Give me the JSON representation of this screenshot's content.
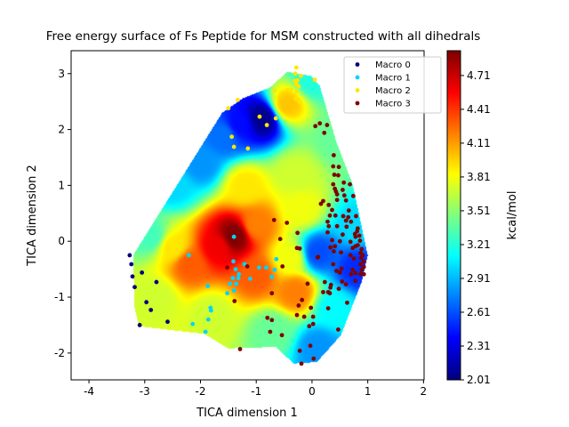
{
  "chart_data": {
    "type": "scatter",
    "title": "Free energy surface of Fs Peptide for MSM constructed with all dihedrals",
    "xlabel": "TICA dimension 1",
    "ylabel": "TICA dimension 2",
    "xlim": [
      -4.32,
      2.01
    ],
    "ylim": [
      -2.48,
      3.41
    ],
    "xticks": [
      -4,
      -3,
      -2,
      -1,
      0,
      1,
      2
    ],
    "yticks": [
      -2,
      -1,
      0,
      1,
      2,
      3
    ],
    "grid": false,
    "legend_placement": "top-right",
    "colorbar": {
      "label": "kcal/mol",
      "colormap": "jet",
      "range": [
        2.01,
        4.93
      ],
      "ticks": [
        "2.01",
        "2.31",
        "2.61",
        "2.91",
        "3.21",
        "3.51",
        "3.81",
        "4.11",
        "4.41",
        "4.71"
      ]
    },
    "surface": {
      "hull": [
        [
          -0.44,
          3.03
        ],
        [
          -0.02,
          2.96
        ],
        [
          0.14,
          2.78
        ],
        [
          0.44,
          1.77
        ],
        [
          0.73,
          1.02
        ],
        [
          1.0,
          -0.25
        ],
        [
          0.89,
          -0.73
        ],
        [
          0.52,
          -1.68
        ],
        [
          0.09,
          -2.16
        ],
        [
          -0.33,
          -2.19
        ],
        [
          -0.65,
          -1.89
        ],
        [
          -1.5,
          -1.92
        ],
        [
          -1.93,
          -1.66
        ],
        [
          -3.1,
          -1.52
        ],
        [
          -3.18,
          -1.2
        ],
        [
          -3.21,
          -0.25
        ],
        [
          -1.61,
          2.3
        ],
        [
          -1.24,
          2.56
        ],
        [
          -0.76,
          2.75
        ]
      ],
      "energy_samples": [
        [
          -1.4,
          0.1,
          4.93
        ],
        [
          -1.7,
          -0.1,
          4.6
        ],
        [
          -2.2,
          -0.4,
          4.3
        ],
        [
          -1.0,
          -0.6,
          4.3
        ],
        [
          -0.3,
          -0.9,
          4.2
        ],
        [
          -0.9,
          2.2,
          2.05
        ],
        [
          -1.3,
          2.1,
          2.4
        ],
        [
          -1.6,
          1.9,
          2.7
        ],
        [
          -2.5,
          1.0,
          3.0
        ],
        [
          -2.0,
          1.4,
          2.8
        ],
        [
          -2.9,
          0.1,
          3.3
        ],
        [
          -0.3,
          1.2,
          3.7
        ],
        [
          -0.45,
          2.45,
          4.0
        ],
        [
          0.8,
          0.3,
          3.0
        ],
        [
          0.1,
          -0.2,
          2.6
        ],
        [
          0.8,
          -0.5,
          2.5
        ],
        [
          0.5,
          1.8,
          3.4
        ],
        [
          -0.7,
          -1.6,
          3.4
        ],
        [
          0.1,
          -1.9,
          2.8
        ],
        [
          -2.8,
          -1.0,
          3.7
        ],
        [
          -1.8,
          -1.3,
          3.7
        ],
        [
          0.0,
          2.9,
          3.2
        ],
        [
          -0.2,
          0.6,
          3.8
        ],
        [
          -1.2,
          1.0,
          3.9
        ],
        [
          -2.5,
          -0.1,
          3.9
        ],
        [
          -1.0,
          0.3,
          4.2
        ],
        [
          0.4,
          -1.2,
          3.1
        ],
        [
          -0.4,
          -0.3,
          3.8
        ]
      ]
    },
    "series": [
      {
        "name": "Macro 0",
        "color": "#000080",
        "points": [
          [
            -3.27,
            -0.25
          ],
          [
            -3.24,
            -0.41
          ],
          [
            -3.22,
            -0.63
          ],
          [
            -3.18,
            -0.82
          ],
          [
            -3.05,
            -0.56
          ],
          [
            -2.79,
            -0.73
          ],
          [
            -2.97,
            -1.09
          ],
          [
            -2.89,
            -1.23
          ],
          [
            -3.09,
            -1.5
          ],
          [
            -2.59,
            -1.44
          ]
        ]
      },
      {
        "name": "Macro 1",
        "color": "#00d4ff",
        "points": [
          [
            -1.4,
            0.08
          ],
          [
            -2.21,
            -0.25
          ],
          [
            -1.41,
            -0.36
          ],
          [
            -1.21,
            -0.41
          ],
          [
            -1.37,
            -0.5
          ],
          [
            -1.31,
            -0.59
          ],
          [
            -1.42,
            -0.66
          ],
          [
            -1.32,
            -0.66
          ],
          [
            -0.95,
            -0.47
          ],
          [
            -0.82,
            -0.47
          ],
          [
            -0.64,
            -0.32
          ],
          [
            -0.67,
            -0.51
          ],
          [
            -0.72,
            -0.64
          ],
          [
            -1.11,
            -0.67
          ],
          [
            -1.47,
            -0.76
          ],
          [
            -1.36,
            -0.76
          ],
          [
            -1.87,
            -0.8
          ],
          [
            -1.4,
            -0.88
          ],
          [
            -1.52,
            -0.93
          ],
          [
            -1.82,
            -1.19
          ],
          [
            -1.81,
            -1.24
          ],
          [
            -1.86,
            -1.4
          ],
          [
            -2.14,
            -1.48
          ],
          [
            -1.91,
            -1.62
          ]
        ]
      },
      {
        "name": "Macro 2",
        "color": "#ffe600",
        "points": [
          [
            -0.28,
            3.11
          ],
          [
            -0.3,
            3.0
          ],
          [
            -0.2,
            2.96
          ],
          [
            0.05,
            2.89
          ],
          [
            -0.31,
            2.87
          ],
          [
            -0.26,
            2.88
          ],
          [
            -0.28,
            2.81
          ],
          [
            -0.44,
            2.71
          ],
          [
            -0.38,
            2.71
          ],
          [
            -0.24,
            2.77
          ],
          [
            -0.28,
            2.68
          ],
          [
            -0.67,
            2.7
          ],
          [
            -0.29,
            2.55
          ],
          [
            -0.23,
            2.5
          ],
          [
            -1.33,
            2.53
          ],
          [
            -1.5,
            2.38
          ],
          [
            -0.94,
            2.23
          ],
          [
            -0.65,
            2.2
          ],
          [
            -0.81,
            2.08
          ],
          [
            -1.44,
            1.87
          ],
          [
            -1.4,
            1.69
          ],
          [
            -1.15,
            1.66
          ]
        ]
      },
      {
        "name": "Macro 3",
        "color": "#800000",
        "points": [
          [
            0.06,
            2.06
          ],
          [
            0.14,
            2.11
          ],
          [
            0.27,
            2.08
          ],
          [
            0.22,
            1.94
          ],
          [
            0.39,
            1.54
          ],
          [
            0.38,
            1.34
          ],
          [
            0.48,
            1.33
          ],
          [
            0.4,
            1.19
          ],
          [
            0.47,
            1.18
          ],
          [
            0.38,
            1.02
          ],
          [
            0.57,
            1.05
          ],
          [
            0.68,
            1.02
          ],
          [
            0.41,
            0.94
          ],
          [
            0.55,
            0.92
          ],
          [
            0.43,
            0.89
          ],
          [
            0.45,
            0.84
          ],
          [
            0.58,
            0.82
          ],
          [
            0.74,
            0.81
          ],
          [
            0.45,
            0.74
          ],
          [
            0.61,
            0.73
          ],
          [
            0.2,
            0.72
          ],
          [
            0.16,
            0.67
          ],
          [
            0.3,
            0.65
          ],
          [
            0.36,
            0.56
          ],
          [
            0.66,
            0.55
          ],
          [
            0.32,
            0.46
          ],
          [
            0.42,
            0.46
          ],
          [
            0.56,
            0.45
          ],
          [
            0.61,
            0.37
          ],
          [
            0.65,
            0.43
          ],
          [
            0.79,
            0.45
          ],
          [
            0.28,
            0.35
          ],
          [
            0.7,
            0.35
          ],
          [
            0.3,
            0.27
          ],
          [
            0.45,
            0.27
          ],
          [
            0.82,
            0.23
          ],
          [
            0.62,
            0.26
          ],
          [
            0.81,
            0.18
          ],
          [
            0.77,
            0.13
          ],
          [
            0.28,
            0.16
          ],
          [
            0.55,
            0.12
          ],
          [
            0.78,
            0.08
          ],
          [
            0.85,
            0.1
          ],
          [
            0.86,
            0.01
          ],
          [
            -0.26,
            0.15
          ],
          [
            -0.68,
            0.38
          ],
          [
            -0.45,
            0.33
          ],
          [
            -0.57,
            0.04
          ],
          [
            -0.27,
            -0.12
          ],
          [
            -0.22,
            -0.13
          ],
          [
            0.36,
            0.02
          ],
          [
            0.5,
            0.0
          ],
          [
            0.69,
            -0.01
          ],
          [
            0.78,
            -0.09
          ],
          [
            0.73,
            -0.12
          ],
          [
            0.33,
            -0.11
          ],
          [
            0.41,
            -0.09
          ],
          [
            0.82,
            -0.07
          ],
          [
            0.89,
            -0.14
          ],
          [
            0.87,
            -0.21
          ],
          [
            0.91,
            -0.25
          ],
          [
            0.88,
            -0.3
          ],
          [
            0.93,
            -0.36
          ],
          [
            0.87,
            -0.41
          ],
          [
            0.93,
            -0.46
          ],
          [
            0.89,
            -0.51
          ],
          [
            0.93,
            -0.59
          ],
          [
            0.1,
            -0.29
          ],
          [
            0.11,
            -0.28
          ],
          [
            0.39,
            -0.18
          ],
          [
            0.52,
            -0.2
          ],
          [
            0.69,
            -0.25
          ],
          [
            0.75,
            -0.31
          ],
          [
            0.38,
            -0.41
          ],
          [
            0.53,
            -0.49
          ],
          [
            0.5,
            -0.56
          ],
          [
            0.44,
            -0.53
          ],
          [
            0.73,
            -0.51
          ],
          [
            0.7,
            -0.59
          ],
          [
            0.78,
            -0.57
          ],
          [
            0.87,
            -0.59
          ],
          [
            0.23,
            -0.73
          ],
          [
            0.54,
            -0.72
          ],
          [
            0.61,
            -0.77
          ],
          [
            0.78,
            -0.71
          ],
          [
            0.34,
            -0.78
          ],
          [
            0.48,
            -0.85
          ],
          [
            0.33,
            -0.83
          ],
          [
            0.2,
            -0.91
          ],
          [
            0.29,
            -0.91
          ],
          [
            0.32,
            -0.93
          ],
          [
            0.63,
            -1.1
          ],
          [
            0.29,
            -1.2
          ],
          [
            -0.02,
            -1.19
          ],
          [
            -0.18,
            -1.05
          ],
          [
            -0.24,
            -1.15
          ],
          [
            -0.27,
            -1.32
          ],
          [
            -0.14,
            -1.35
          ],
          [
            0.02,
            -1.35
          ],
          [
            0.02,
            -1.48
          ],
          [
            -0.05,
            -1.52
          ],
          [
            -0.54,
            -1.68
          ],
          [
            -0.75,
            -1.62
          ],
          [
            -0.72,
            -1.41
          ],
          [
            -0.8,
            -1.37
          ],
          [
            -0.72,
            -0.93
          ],
          [
            -0.53,
            -0.45
          ],
          [
            -1.16,
            -0.45
          ],
          [
            -1.52,
            -0.47
          ],
          [
            -1.39,
            -1.07
          ],
          [
            -0.08,
            -0.76
          ],
          [
            -0.22,
            -1.96
          ],
          [
            -0.03,
            -1.87
          ],
          [
            0.03,
            -2.1
          ],
          [
            -0.19,
            -2.19
          ],
          [
            -1.29,
            -1.93
          ],
          [
            0.47,
            -1.58
          ]
        ]
      }
    ]
  }
}
